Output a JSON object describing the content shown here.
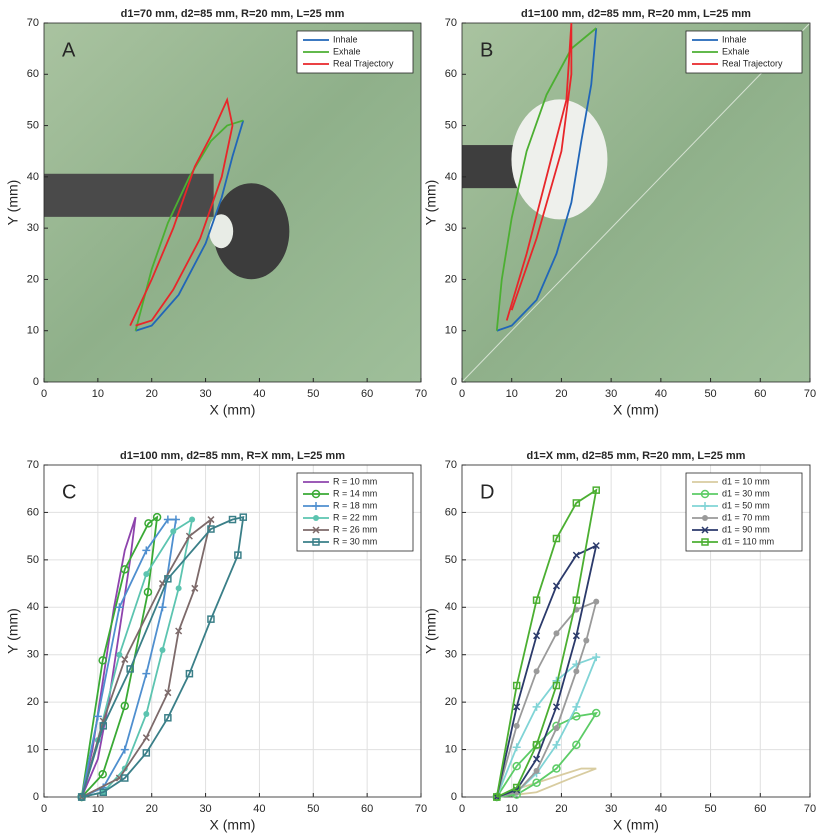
{
  "chart_data": [
    {
      "type": "line",
      "title": "d1=70 mm, d2=85 mm, R=20 mm, L=25 mm",
      "label": "A",
      "xlabel": "X (mm)",
      "ylabel": "Y (mm)",
      "xlim": [
        0,
        70
      ],
      "ylim": [
        0,
        70
      ],
      "xticks": [
        0,
        10,
        20,
        30,
        40,
        50,
        60,
        70
      ],
      "yticks": [
        0,
        10,
        20,
        30,
        40,
        50,
        60,
        70
      ],
      "grid": false,
      "legend": "upper right",
      "series": [
        {
          "name": "Inhale",
          "color": "#2166b8",
          "marker": "none",
          "x": [
            17,
            20,
            25,
            30,
            33,
            35,
            37
          ],
          "values": [
            10,
            11,
            17,
            27,
            36,
            44,
            51
          ]
        },
        {
          "name": "Exhale",
          "color": "#4caf32",
          "marker": "none",
          "x": [
            17,
            18,
            20,
            23,
            27,
            31,
            34,
            37
          ],
          "values": [
            10,
            14,
            22,
            31,
            40,
            47,
            50,
            51
          ]
        },
        {
          "name": "Real Trajectory",
          "color": "#e8262a",
          "marker": "none",
          "x": [
            16,
            20,
            24,
            28,
            31,
            34,
            35,
            33,
            29,
            24,
            20,
            17
          ],
          "values": [
            11,
            20,
            30,
            42,
            48,
            55,
            50,
            40,
            28,
            18,
            12,
            11
          ]
        }
      ]
    },
    {
      "type": "line",
      "title": "d1=100 mm, d2=85 mm, R=20 mm, L=25 mm",
      "label": "B",
      "xlabel": "X (mm)",
      "ylabel": "Y (mm)",
      "xlim": [
        0,
        70
      ],
      "ylim": [
        0,
        70
      ],
      "xticks": [
        0,
        10,
        20,
        30,
        40,
        50,
        60,
        70
      ],
      "yticks": [
        0,
        10,
        20,
        30,
        40,
        50,
        60,
        70
      ],
      "grid": false,
      "legend": "upper right",
      "series": [
        {
          "name": "Inhale",
          "color": "#2166b8",
          "marker": "none",
          "x": [
            7,
            10,
            15,
            19,
            22,
            24,
            26,
            27
          ],
          "values": [
            10,
            11,
            16,
            25,
            35,
            47,
            58,
            69
          ]
        },
        {
          "name": "Exhale",
          "color": "#4caf32",
          "marker": "none",
          "x": [
            7,
            8,
            10,
            13,
            17,
            22,
            27
          ],
          "values": [
            10,
            20,
            32,
            45,
            56,
            65,
            69
          ]
        },
        {
          "name": "Real Trajectory",
          "color": "#e8262a",
          "marker": "none",
          "x": [
            9,
            13,
            17,
            21,
            22,
            22,
            20,
            15,
            10
          ],
          "values": [
            12,
            25,
            40,
            55,
            70,
            60,
            45,
            28,
            14
          ]
        }
      ]
    },
    {
      "type": "line",
      "title": "d1=100 mm, d2=85 mm, R=X mm, L=25 mm",
      "label": "C",
      "xlabel": "X (mm)",
      "ylabel": "Y (mm)",
      "xlim": [
        0,
        70
      ],
      "ylim": [
        0,
        70
      ],
      "xticks": [
        0,
        10,
        20,
        30,
        40,
        50,
        60,
        70
      ],
      "yticks": [
        0,
        10,
        20,
        30,
        40,
        50,
        60,
        70
      ],
      "grid": true,
      "legend": "upper right",
      "series": [
        {
          "name": "R = 10 mm",
          "color": "#8e44ad",
          "marker": "none",
          "x": [
            7,
            9,
            11,
            13,
            15,
            17,
            16,
            14,
            12,
            10,
            7
          ],
          "values": [
            0,
            10,
            25,
            40,
            52,
            59,
            50,
            35,
            20,
            8,
            0
          ]
        },
        {
          "name": "R = 14 mm",
          "color": "#3aaa35",
          "marker": "o",
          "x": [
            7,
            10.9,
            15,
            19.4,
            21,
            19.3,
            15,
            10.9,
            7
          ],
          "values": [
            0,
            28.8,
            48,
            57.7,
            59,
            43.2,
            19.2,
            4.8,
            0
          ]
        },
        {
          "name": "R = 18 mm",
          "color": "#4f8fcf",
          "marker": "+",
          "x": [
            7,
            10,
            14,
            19,
            23,
            24.5,
            22,
            19,
            15,
            11,
            7
          ],
          "values": [
            0,
            17,
            40,
            52,
            58.5,
            58.5,
            40,
            26,
            10,
            2,
            0
          ]
        },
        {
          "name": "R = 22 mm",
          "color": "#5cc4b0",
          "marker": "dot",
          "x": [
            7,
            10,
            14,
            19,
            24,
            27.5,
            25,
            22,
            19,
            15,
            11,
            7
          ],
          "values": [
            0,
            12,
            30,
            47,
            56,
            58.5,
            44,
            31,
            17.5,
            6,
            1,
            0
          ]
        },
        {
          "name": "R = 26 mm",
          "color": "#7d6a6a",
          "marker": "x",
          "x": [
            7,
            11,
            15,
            22,
            27,
            31,
            28,
            25,
            23,
            19,
            14,
            7
          ],
          "values": [
            0,
            16,
            29,
            45,
            55,
            58.5,
            44,
            35,
            22,
            12.5,
            4,
            0
          ]
        },
        {
          "name": "R = 30 mm",
          "color": "#3a7f88",
          "marker": "s",
          "x": [
            7,
            11,
            16,
            23,
            31,
            35,
            37,
            36,
            31,
            27,
            23,
            19,
            15,
            11,
            7
          ],
          "values": [
            0,
            15,
            27,
            46,
            56.5,
            58.5,
            59,
            51,
            37.5,
            26,
            16.7,
            9.3,
            4,
            1,
            0
          ]
        }
      ]
    },
    {
      "type": "line",
      "title": "d1=X mm, d2=85 mm, R=20 mm, L=25 mm",
      "label": "D",
      "xlabel": "X (mm)",
      "ylabel": "Y (mm)",
      "xlim": [
        0,
        70
      ],
      "ylim": [
        0,
        70
      ],
      "xticks": [
        0,
        10,
        20,
        30,
        40,
        50,
        60,
        70
      ],
      "yticks": [
        0,
        10,
        20,
        30,
        40,
        50,
        60,
        70
      ],
      "grid": true,
      "legend": "upper right",
      "series": [
        {
          "name": "d1 = 10 mm",
          "color": "#d8cca0",
          "marker": "none",
          "x": [
            7,
            12,
            18,
            24,
            27,
            22,
            15,
            7
          ],
          "values": [
            0,
            2,
            4,
            6,
            6,
            4,
            1,
            0
          ]
        },
        {
          "name": "d1 = 30 mm",
          "color": "#5ccc66",
          "marker": "o",
          "x": [
            7,
            11,
            15,
            19,
            23,
            27,
            23,
            19,
            15,
            11,
            7
          ],
          "values": [
            0,
            6.5,
            11,
            15,
            17,
            17.7,
            11,
            6,
            3,
            0.5,
            0
          ]
        },
        {
          "name": "d1 = 50 mm",
          "color": "#80d4d6",
          "marker": "+",
          "x": [
            7,
            11,
            15,
            19,
            23,
            27,
            23,
            19,
            15,
            11,
            7
          ],
          "values": [
            0,
            10.5,
            19,
            24.5,
            28,
            29.5,
            19,
            11,
            5,
            1,
            0
          ]
        },
        {
          "name": "d1 = 70 mm",
          "color": "#9a9a9a",
          "marker": "dot",
          "x": [
            7,
            11,
            15,
            19,
            23,
            27,
            25,
            23,
            19,
            15,
            11,
            7
          ],
          "values": [
            0,
            15,
            26.5,
            34.5,
            39.5,
            41.2,
            33,
            26.5,
            14.5,
            5.5,
            1,
            0
          ]
        },
        {
          "name": "d1 = 90 mm",
          "color": "#2b3a6b",
          "marker": "x",
          "x": [
            7,
            11,
            15,
            19,
            23,
            27,
            23,
            19,
            15,
            11,
            7
          ],
          "values": [
            0,
            19,
            34,
            44.5,
            51,
            53,
            34,
            19,
            8,
            1.5,
            0
          ]
        },
        {
          "name": "d1 = 110 mm",
          "color": "#4caf32",
          "marker": "s",
          "x": [
            7,
            11,
            15,
            19,
            23,
            27,
            23,
            19,
            15,
            11,
            7
          ],
          "values": [
            0,
            23.5,
            41.5,
            54.5,
            62,
            64.7,
            41.5,
            23.5,
            11,
            2,
            0
          ]
        }
      ]
    }
  ]
}
